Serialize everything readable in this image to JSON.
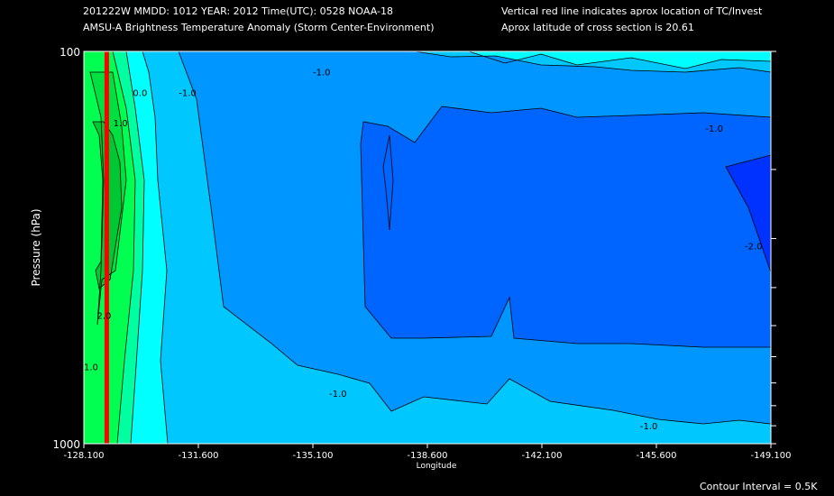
{
  "header": {
    "line1": "201222W  MMDD: 1012 YEAR: 2012 Time(UTC): 0528 NOAA-18",
    "line2": "AMSU-A Brightness Temperature Anomaly (Storm Center-Environment)",
    "note1": "Vertical red line indicates aprox location of TC/Invest",
    "note2": "Aprox latitude of cross section is 20.61"
  },
  "footer": {
    "contour_interval": "Contour Interval = 0.5K"
  },
  "chart_data": {
    "type": "heatmap",
    "title": "AMSU-A Brightness Temperature Anomaly (Storm Center-Environment)",
    "xlabel": "Longitude",
    "ylabel": "Pressure (hPa)",
    "xlim": [
      -128.1,
      -149.1
    ],
    "ylim": [
      1000,
      100
    ],
    "yscale": "log",
    "x_ticks": [
      "-128.100",
      "-131.600",
      "-135.100",
      "-138.600",
      "-142.100",
      "-145.600",
      "-149.100"
    ],
    "y_tick_labels": [
      "100",
      "1000"
    ],
    "contour_interval": 0.5,
    "tc_longitude": -128.8,
    "tc_line_color": "#ff0000",
    "contour_labels": [
      {
        "text": "0.0",
        "lon": -129.6,
        "p": 130
      },
      {
        "text": "1.0",
        "lon": -129.0,
        "p": 155
      },
      {
        "text": "2.0",
        "lon": -128.5,
        "p": 480
      },
      {
        "text": "1.0",
        "lon": -128.1,
        "p": 650
      },
      {
        "text": "-1.0",
        "lon": -131.0,
        "p": 130
      },
      {
        "text": "-1.0",
        "lon": -135.1,
        "p": 115
      },
      {
        "text": "-1.0",
        "lon": -147.1,
        "p": 160
      },
      {
        "text": "-2.0",
        "lon": -148.3,
        "p": 320
      },
      {
        "text": "-1.0",
        "lon": -135.6,
        "p": 760
      },
      {
        "text": "-1.0",
        "lon": -145.1,
        "p": 920
      }
    ],
    "colors": {
      "neg2": "#0032ff",
      "neg1_5": "#0064ff",
      "neg1": "#0096ff",
      "neg0_5": "#00c8ff",
      "zero": "#00ffff",
      "pos0_5": "#00ffa0",
      "pos1": "#00ff50",
      "pos1_5": "#00e040",
      "pos2": "#00c832"
    }
  }
}
